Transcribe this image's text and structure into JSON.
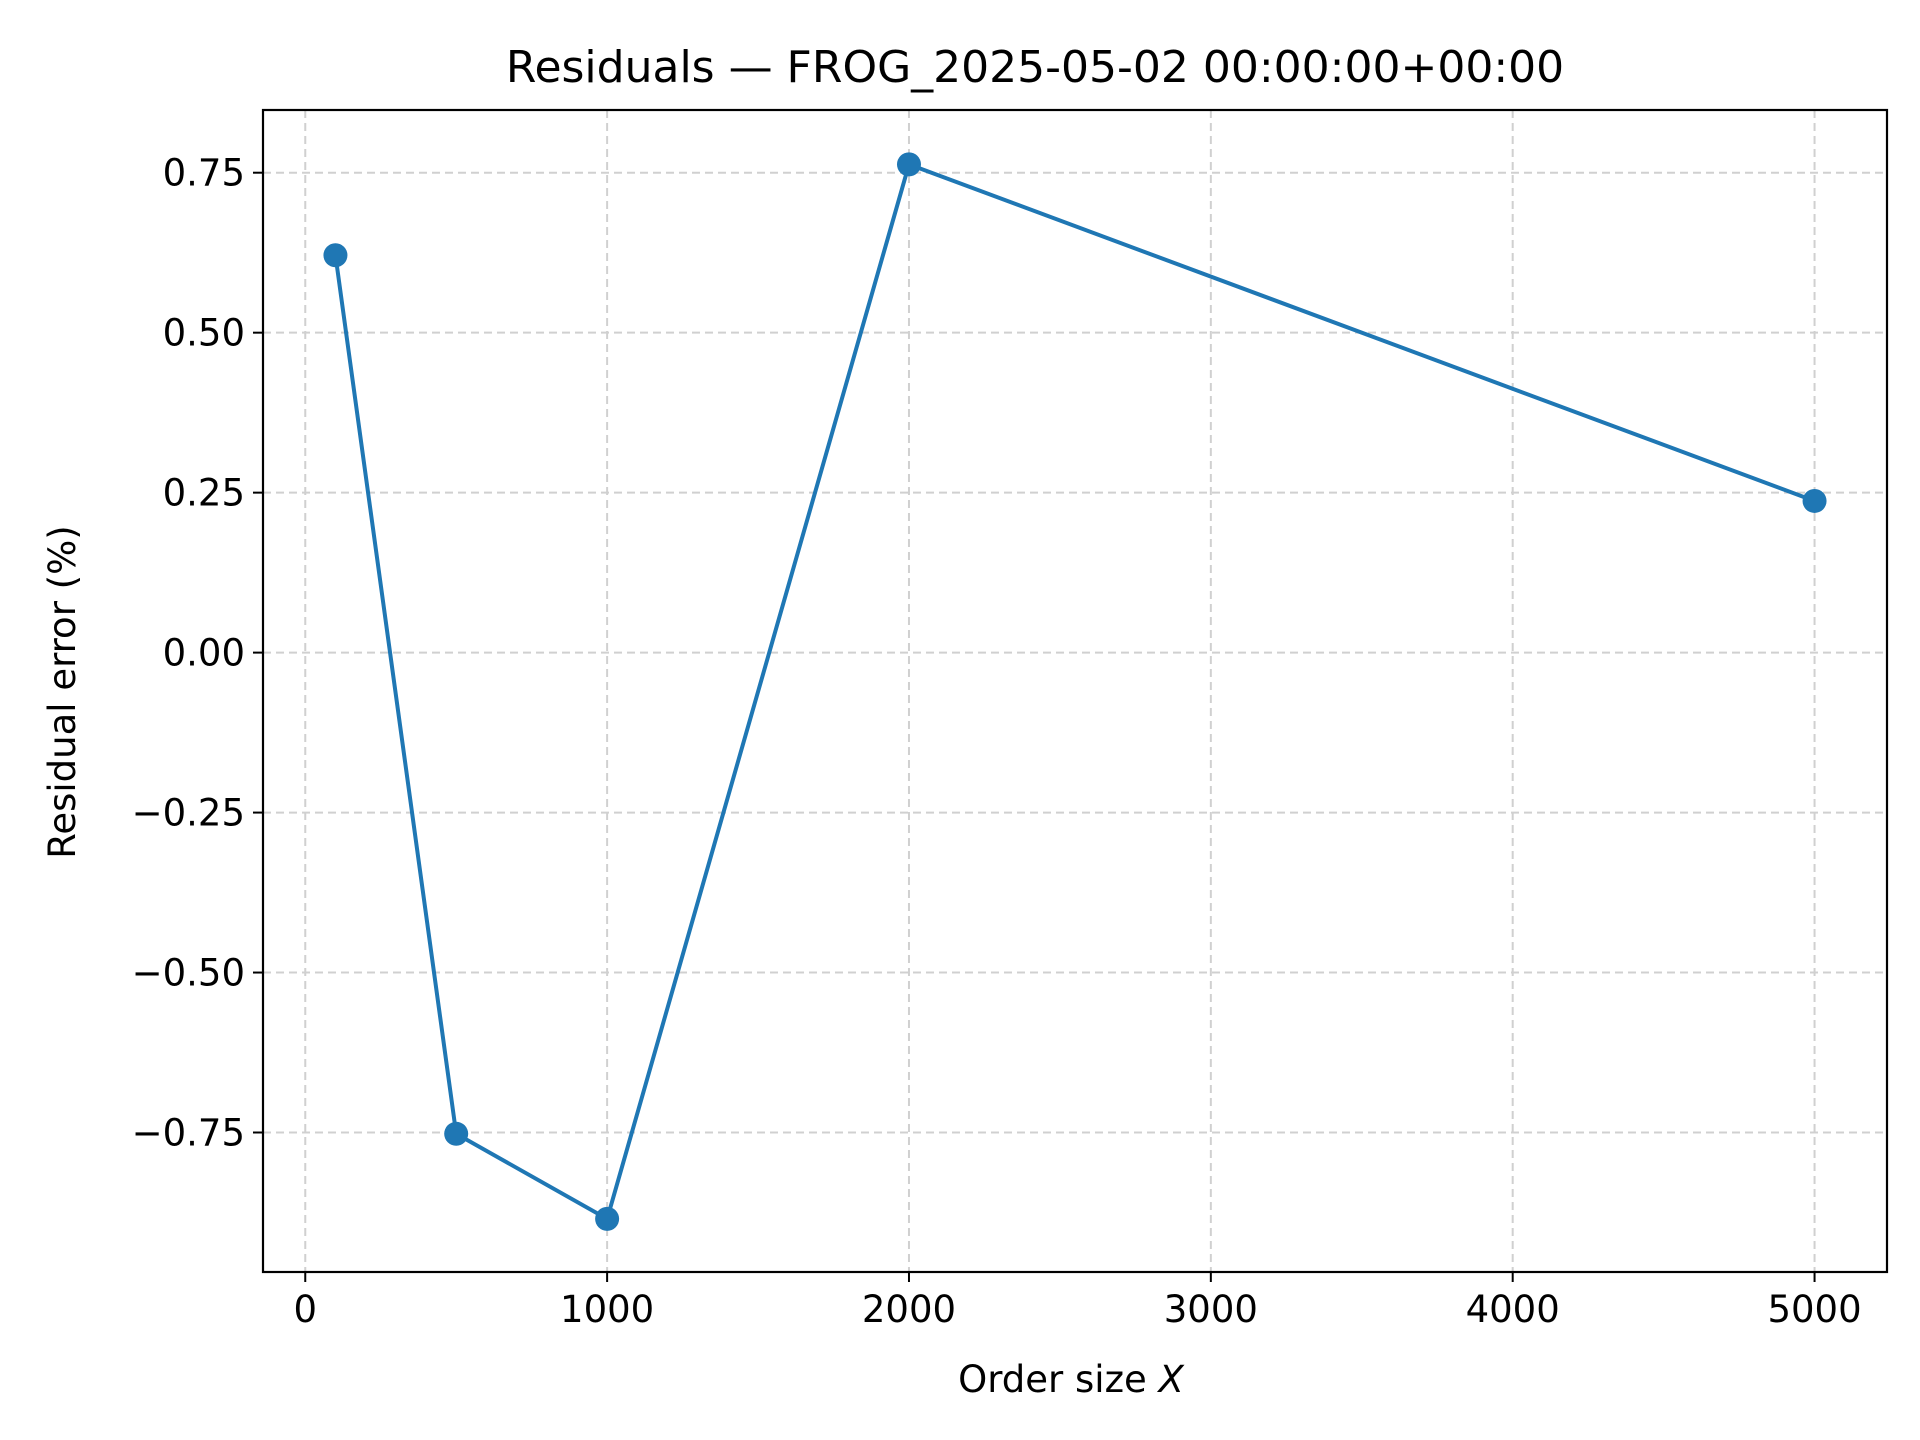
{
  "chart_data": {
    "type": "line",
    "title": "Residuals — FROG_2025-05-02 00:00:00+00:00",
    "xlabel_prefix": "Order size ",
    "xlabel_var": "X",
    "ylabel": "Residual error (%)",
    "xlim": [
      -140,
      5240
    ],
    "ylim": [
      -0.968,
      0.848
    ],
    "xticks": [
      0,
      1000,
      2000,
      3000,
      4000,
      5000
    ],
    "xtick_labels": [
      "0",
      "1000",
      "2000",
      "3000",
      "4000",
      "5000"
    ],
    "yticks": [
      -0.75,
      -0.5,
      -0.25,
      0.0,
      0.25,
      0.5,
      0.75
    ],
    "ytick_labels": [
      "−0.75",
      "−0.50",
      "−0.25",
      "0.00",
      "0.25",
      "0.50",
      "0.75"
    ],
    "grid": true,
    "series": [
      {
        "x": [
          100,
          500,
          1000,
          2000,
          5000
        ],
        "y": [
          0.621,
          -0.752,
          -0.885,
          0.763,
          0.237
        ],
        "color": "#1f77b4",
        "marker": "circle"
      }
    ]
  }
}
